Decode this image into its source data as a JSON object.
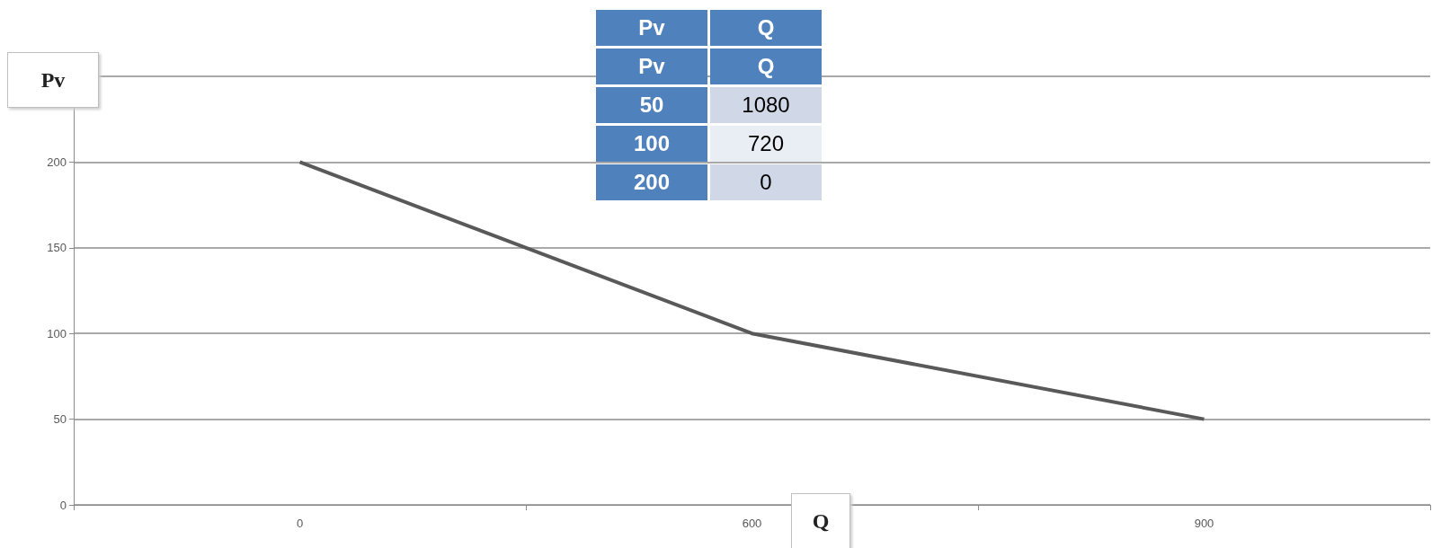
{
  "chart_data": {
    "type": "line",
    "xlabel": "Q",
    "ylabel": "Pv",
    "categories": [
      "0",
      "600",
      "900"
    ],
    "series": [
      {
        "color": "#595959",
        "values": [
          200,
          100,
          50
        ]
      }
    ],
    "ylim": [
      0,
      250
    ],
    "yticks": [
      0,
      50,
      100,
      150,
      200,
      {
        "value": 250,
        "label": null
      }
    ],
    "grid": "y",
    "marker": "none",
    "line_style": "solid",
    "annotations": [
      "Pv",
      "Q",
      "Pv",
      "Q",
      "50",
      "1080",
      "100",
      "720",
      "200",
      "0"
    ]
  }
}
